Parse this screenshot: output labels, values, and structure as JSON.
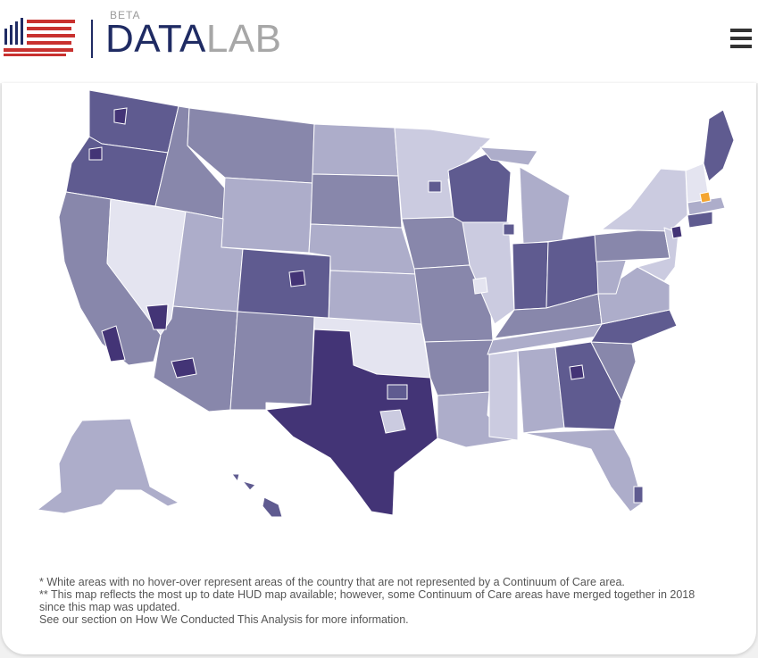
{
  "header": {
    "beta_label": "BETA",
    "title_part1": "DATA",
    "title_part2": "LAB",
    "colors": {
      "navy": "#1f2b63",
      "red": "#c8312f",
      "gray": "#a7a7a7"
    }
  },
  "menu": {
    "icon": "hamburger-menu-icon"
  },
  "map": {
    "colors": {
      "darkest": "#433476",
      "dark": "#5f5b90",
      "medium": "#8887ab",
      "light": "#adadca",
      "lighter": "#cbcbe0",
      "lightest": "#e4e4f0",
      "highlight": "#f4a531",
      "border": "#ffffff"
    }
  },
  "notes": [
    "* White areas with no hover-over represent areas of the country that are not represented by a Continuum of Care area.",
    "** This map reflects the most up to date HUD map available; however, some Continuum of Care areas have merged together in 2018 since this map was updated.",
    "See our section on How We Conducted This Analysis for more information."
  ]
}
